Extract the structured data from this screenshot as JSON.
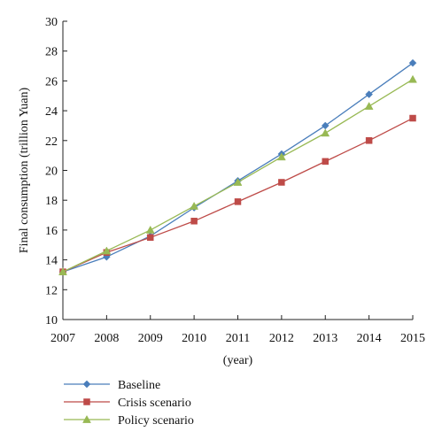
{
  "chart_data": {
    "type": "line",
    "title": "",
    "xlabel": "(year)",
    "ylabel": "Final consumption (trillion Yuan)",
    "x": [
      2007,
      2008,
      2009,
      2010,
      2011,
      2012,
      2013,
      2014,
      2015
    ],
    "ylim": [
      10,
      30
    ],
    "yticks": [
      10,
      12,
      14,
      16,
      18,
      20,
      22,
      24,
      26,
      28,
      30
    ],
    "grid": false,
    "legend_position": "bottom-left",
    "series": [
      {
        "name": "Baseline",
        "color": "#4a7ebb",
        "marker": "diamond",
        "values": [
          13.2,
          14.2,
          15.6,
          17.5,
          19.3,
          21.1,
          23.0,
          25.1,
          27.2
        ]
      },
      {
        "name": "Crisis scenario",
        "color": "#be4b48",
        "marker": "square",
        "values": [
          13.2,
          14.5,
          15.5,
          16.6,
          17.9,
          19.2,
          20.6,
          22.0,
          23.5
        ]
      },
      {
        "name": "Policy scenario",
        "color": "#98b954",
        "marker": "triangle",
        "values": [
          13.2,
          14.6,
          16.0,
          17.6,
          19.2,
          20.9,
          22.5,
          24.3,
          26.1
        ]
      }
    ]
  }
}
